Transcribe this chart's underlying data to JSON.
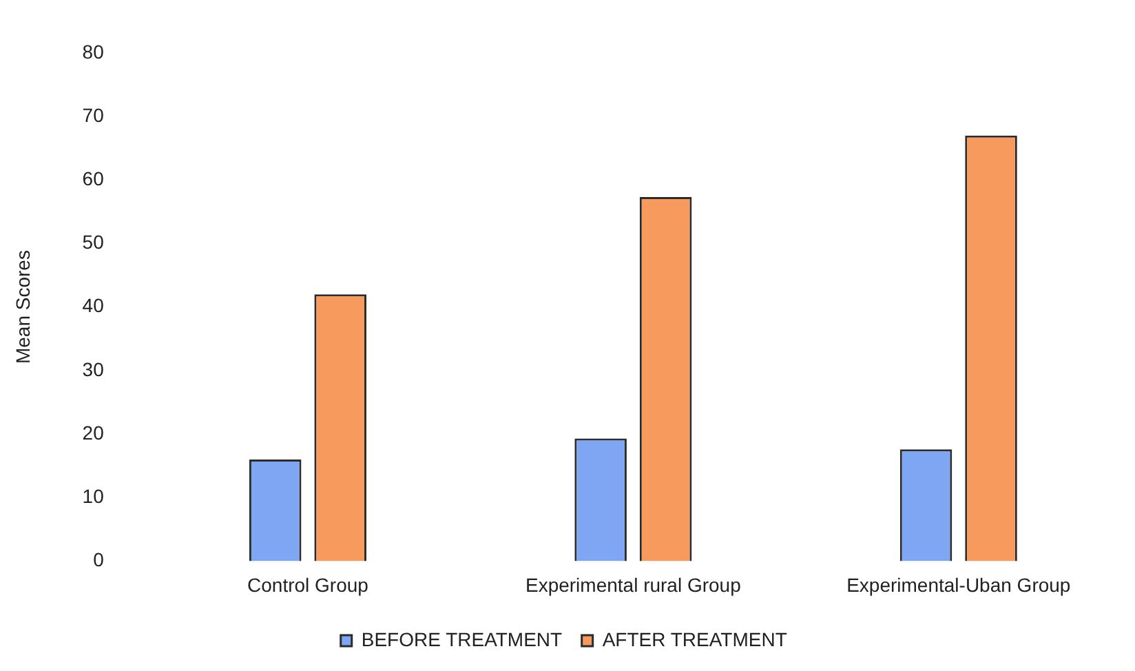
{
  "chart_data": {
    "type": "bar",
    "ylabel": "Mean Scores",
    "categories": [
      "Control Group",
      "Experimental rural Group",
      "Experimental-Uban Group"
    ],
    "series": [
      {
        "name": "BEFORE TREATMENT",
        "color": "#7ea6f2",
        "values": [
          16,
          19.3,
          17.6
        ]
      },
      {
        "name": "AFTER TREATMENT",
        "color": "#f79a5e",
        "values": [
          42,
          57.3,
          67
        ]
      }
    ],
    "ylim": [
      0,
      80
    ],
    "yticks": [
      0,
      10,
      20,
      30,
      40,
      50,
      60,
      70,
      80
    ],
    "grid": false,
    "legend": "bottom"
  }
}
